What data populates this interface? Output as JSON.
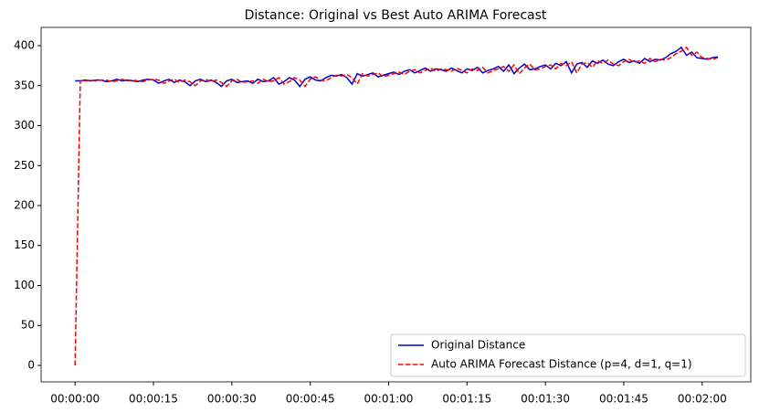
{
  "chart_data": {
    "type": "line",
    "title": "Distance: Original vs Best Auto ARIMA Forecast",
    "x": [
      0,
      1,
      2,
      3,
      4,
      5,
      6,
      7,
      8,
      9,
      10,
      11,
      12,
      13,
      14,
      15,
      16,
      17,
      18,
      19,
      20,
      21,
      22,
      23,
      24,
      25,
      26,
      27,
      28,
      29,
      30,
      31,
      32,
      33,
      34,
      35,
      36,
      37,
      38,
      39,
      40,
      41,
      42,
      43,
      44,
      45,
      46,
      47,
      48,
      49,
      50,
      51,
      52,
      53,
      54,
      55,
      56,
      57,
      58,
      59,
      60,
      61,
      62,
      63,
      64,
      65,
      66,
      67,
      68,
      69,
      70,
      71,
      72,
      73,
      74,
      75,
      76,
      77,
      78,
      79,
      80,
      81,
      82,
      83,
      84,
      85,
      86,
      87,
      88,
      89,
      90,
      91,
      92,
      93,
      94,
      95,
      96,
      97,
      98,
      99,
      100,
      101,
      102,
      103,
      104,
      105,
      106,
      107,
      108,
      109,
      110,
      111,
      112,
      113,
      114,
      115,
      116,
      117,
      118,
      119,
      120,
      121,
      122,
      123
    ],
    "series": [
      {
        "name": "Original Distance",
        "color": "#0000cd",
        "dash": false,
        "values": [
          356,
          356,
          357,
          356,
          357,
          357,
          355,
          356,
          358,
          356,
          357,
          356,
          355,
          357,
          358,
          357,
          353,
          356,
          358,
          354,
          357,
          355,
          350,
          356,
          358,
          355,
          357,
          354,
          349,
          356,
          358,
          354,
          355,
          356,
          353,
          358,
          355,
          356,
          360,
          352,
          355,
          360,
          357,
          349,
          358,
          361,
          357,
          356,
          360,
          363,
          362,
          364,
          360,
          352,
          365,
          362,
          364,
          366,
          361,
          363,
          365,
          367,
          364,
          368,
          370,
          366,
          369,
          372,
          368,
          371,
          370,
          368,
          372,
          369,
          366,
          371,
          369,
          373,
          366,
          369,
          371,
          374,
          368,
          376,
          365,
          372,
          377,
          370,
          371,
          374,
          376,
          371,
          378,
          375,
          380,
          366,
          377,
          379,
          373,
          381,
          378,
          382,
          377,
          375,
          380,
          383,
          379,
          381,
          378,
          384,
          380,
          383,
          382,
          385,
          390,
          393,
          398,
          388,
          392,
          385,
          384,
          383,
          385,
          386
        ]
      },
      {
        "name": "Auto ARIMA Forecast Distance (p=4, d=1, q=1)",
        "color": "#ff0000",
        "dash": true,
        "values": [
          0,
          356,
          356,
          357,
          356,
          357,
          357,
          355,
          356,
          358,
          356,
          357,
          356,
          355,
          357,
          358,
          357,
          353,
          356,
          358,
          354,
          357,
          355,
          350,
          356,
          358,
          355,
          357,
          354,
          349,
          356,
          358,
          354,
          355,
          356,
          353,
          358,
          355,
          356,
          360,
          352,
          355,
          360,
          357,
          349,
          358,
          361,
          357,
          356,
          360,
          363,
          362,
          364,
          360,
          352,
          365,
          362,
          364,
          366,
          361,
          363,
          365,
          367,
          364,
          368,
          370,
          366,
          369,
          372,
          368,
          371,
          370,
          368,
          372,
          369,
          366,
          371,
          369,
          373,
          366,
          369,
          371,
          374,
          368,
          376,
          365,
          372,
          377,
          370,
          371,
          374,
          376,
          371,
          378,
          375,
          380,
          366,
          377,
          379,
          373,
          381,
          378,
          382,
          377,
          375,
          380,
          383,
          379,
          381,
          378,
          384,
          380,
          383,
          382,
          385,
          390,
          393,
          398,
          388,
          392,
          385,
          384,
          383,
          385
        ]
      }
    ],
    "xlim": [
      -6.5,
      129.3
    ],
    "ylim": [
      -20.6,
      422.9
    ],
    "xticks": [
      {
        "value": 0,
        "label": "00:00:00"
      },
      {
        "value": 15,
        "label": "00:00:15"
      },
      {
        "value": 30,
        "label": "00:00:30"
      },
      {
        "value": 45,
        "label": "00:00:45"
      },
      {
        "value": 60,
        "label": "00:01:00"
      },
      {
        "value": 75,
        "label": "00:01:15"
      },
      {
        "value": 90,
        "label": "00:01:30"
      },
      {
        "value": 105,
        "label": "00:01:45"
      },
      {
        "value": 120,
        "label": "00:02:00"
      }
    ],
    "yticks": [
      0,
      50,
      100,
      150,
      200,
      250,
      300,
      350,
      400
    ],
    "grid": false,
    "legend": "lower right"
  }
}
